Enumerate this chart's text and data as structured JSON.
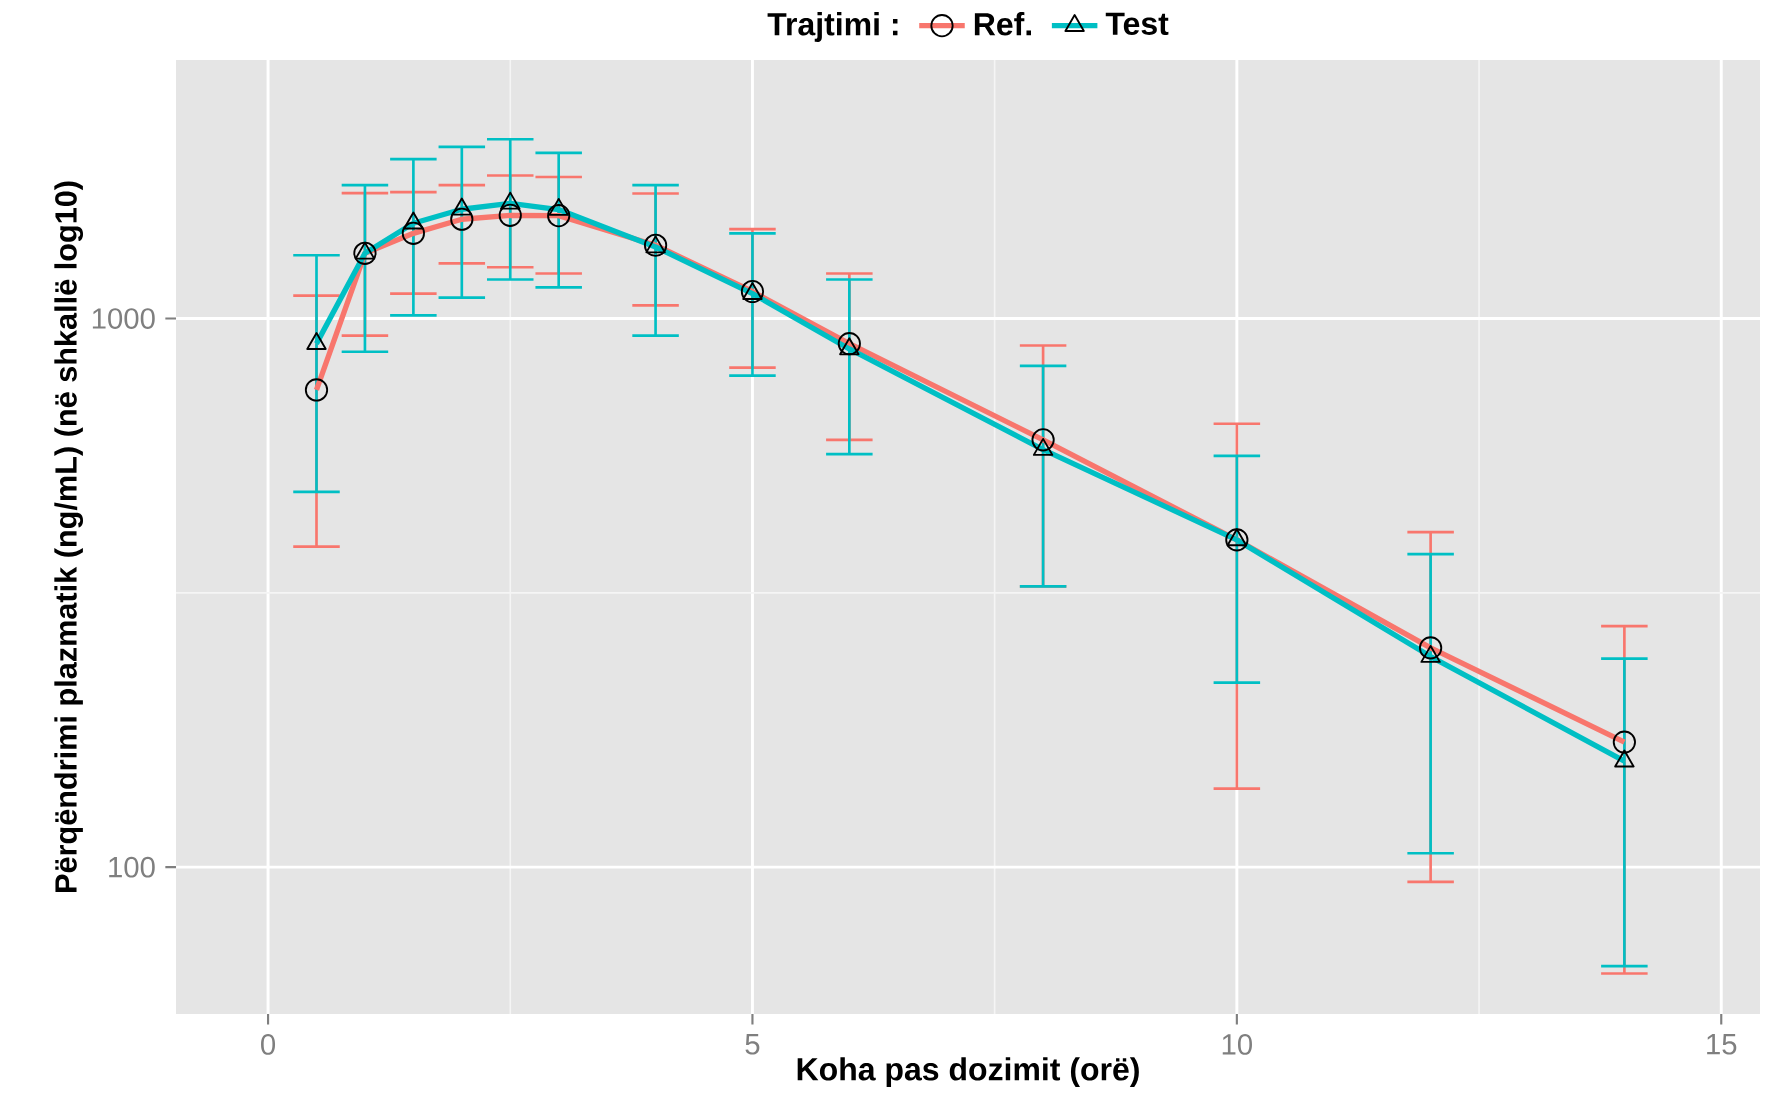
{
  "chart_data": {
    "type": "line",
    "xlabel": "Koha pas dozimit (orë)",
    "ylabel": "Përqëndrimi plazmatik (ng/mL) (në shkallë log10)",
    "legend_title": "Trajtimi :",
    "x": [
      0.5,
      1,
      1.5,
      2,
      2.5,
      3,
      4,
      5,
      6,
      8,
      10,
      12,
      14
    ],
    "series": [
      {
        "name": "Ref.",
        "color": "#f8766d",
        "marker": "circle",
        "values": [
          741,
          1315,
          1430,
          1517,
          1542,
          1540,
          1360,
          1120,
          900,
          601,
          395,
          251,
          169
        ],
        "errors": [
          [
            384,
            1101
          ],
          [
            931,
            1693
          ],
          [
            1110,
            1700
          ],
          [
            1260,
            1750
          ],
          [
            1240,
            1823
          ],
          [
            1208,
            1811
          ],
          [
            1057,
            1690
          ],
          [
            814,
            1455
          ],
          [
            601,
            1208
          ],
          [
            325,
            893
          ],
          [
            139,
            643
          ],
          [
            94,
            408
          ],
          [
            64,
            275
          ]
        ]
      },
      {
        "name": "Test",
        "color": "#00bfc4",
        "marker": "triangle",
        "values": [
          900,
          1315,
          1492,
          1582,
          1622,
          1580,
          1350,
          1110,
          880,
          577,
          395,
          242,
          156
        ],
        "errors": [
          [
            483,
            1304
          ],
          [
            870,
            1750
          ],
          [
            1013,
            1953
          ],
          [
            1092,
            2055
          ],
          [
            1178,
            2122
          ],
          [
            1140,
            2004
          ],
          [
            931,
            1750
          ],
          [
            787,
            1430
          ],
          [
            566,
            1178
          ],
          [
            325,
            820
          ],
          [
            217,
            562
          ],
          [
            106,
            372
          ],
          [
            66,
            240
          ]
        ]
      }
    ],
    "xlim": [
      -0.95,
      15.4
    ],
    "ylim": [
      54,
      2960
    ],
    "xticks": [
      0,
      5,
      10,
      15
    ],
    "yticks": [
      100,
      1000
    ],
    "log": "y",
    "grid": true,
    "legend": "top",
    "line_style": "solid"
  }
}
